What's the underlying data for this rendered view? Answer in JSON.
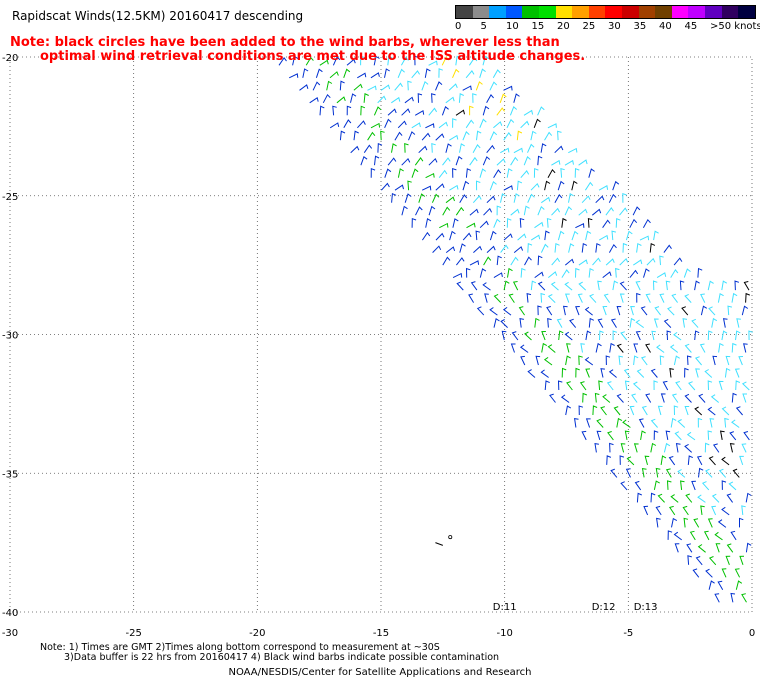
{
  "title": "Rapidscat Winds(12.5KM) 20160417 descending",
  "note": {
    "line1": "Note: black circles have been added to the wind barbs, wherever less than",
    "line2": "optimal wind retrieval conditions are met due to the ISS altitude changes."
  },
  "scale": {
    "unit": "knots",
    "labels": [
      "0",
      "5",
      "10",
      "15",
      "20",
      "25",
      "30",
      "35",
      "40",
      "45",
      ">50 knots"
    ],
    "colors": [
      "#444444",
      "#8c8c8c",
      "#00a0ff",
      "#0058ff",
      "#00c000",
      "#00e000",
      "#ffe000",
      "#ffa000",
      "#ff4000",
      "#ff0000",
      "#cc0000",
      "#a04000",
      "#704000",
      "#ff00ff",
      "#c000ff",
      "#6000c0",
      "#300060",
      "#000040"
    ]
  },
  "map": {
    "lon_range": [
      -30,
      0
    ],
    "lat_range": [
      -40,
      -20
    ],
    "lon_ticks": [
      "-30",
      "-25",
      "-20",
      "-15",
      "-10",
      "-5",
      "0"
    ],
    "lat_ticks": [
      "-20",
      "-25",
      "-30",
      "-35",
      "-40"
    ],
    "time_labels": [
      {
        "text": "D:11",
        "lon": -10
      },
      {
        "text": "D:12",
        "lon": -6
      },
      {
        "text": "D:13",
        "lon": -4.3
      }
    ],
    "barb_colors": {
      "black": "#000000",
      "cyan": "#40e0ff",
      "blue": "#0030d0",
      "green": "#00c000",
      "yellow": "#ffe000"
    }
  },
  "footnotes": {
    "line1": "Note: 1) Times are GMT 2)Times along bottom correspond to measurement at ~30S",
    "line2": "3)Data buffer is 22 hrs from 20160417 4) Black wind barbs indicate possible contamination"
  },
  "credit": "NOAA/NESDIS/Center for Satellite Applications and Research"
}
